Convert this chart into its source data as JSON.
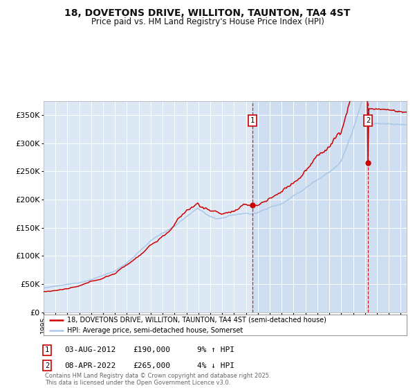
{
  "title": "18, DOVETONS DRIVE, WILLITON, TAUNTON, TA4 4ST",
  "subtitle": "Price paid vs. HM Land Registry's House Price Index (HPI)",
  "background_color": "#ffffff",
  "plot_bg_color": "#dde8f5",
  "grid_color": "#ffffff",
  "hpi_line_color": "#a8c8e8",
  "price_line_color": "#cc0000",
  "legend_price": "18, DOVETONS DRIVE, WILLITON, TAUNTON, TA4 4ST (semi-detached house)",
  "legend_hpi": "HPI: Average price, semi-detached house, Somerset",
  "footer": "Contains HM Land Registry data © Crown copyright and database right 2025.\nThis data is licensed under the Open Government Licence v3.0.",
  "ylim": [
    0,
    375000
  ],
  "yticks": [
    0,
    50000,
    100000,
    150000,
    200000,
    250000,
    300000,
    350000
  ],
  "ytick_labels": [
    "£0",
    "£50K",
    "£100K",
    "£150K",
    "£200K",
    "£250K",
    "£300K",
    "£350K"
  ],
  "xstart": 1995,
  "xend": 2025.5,
  "marker1_year": 2012.58,
  "marker2_year": 2022.25,
  "marker1_price": 190000,
  "marker2_price": 265000
}
